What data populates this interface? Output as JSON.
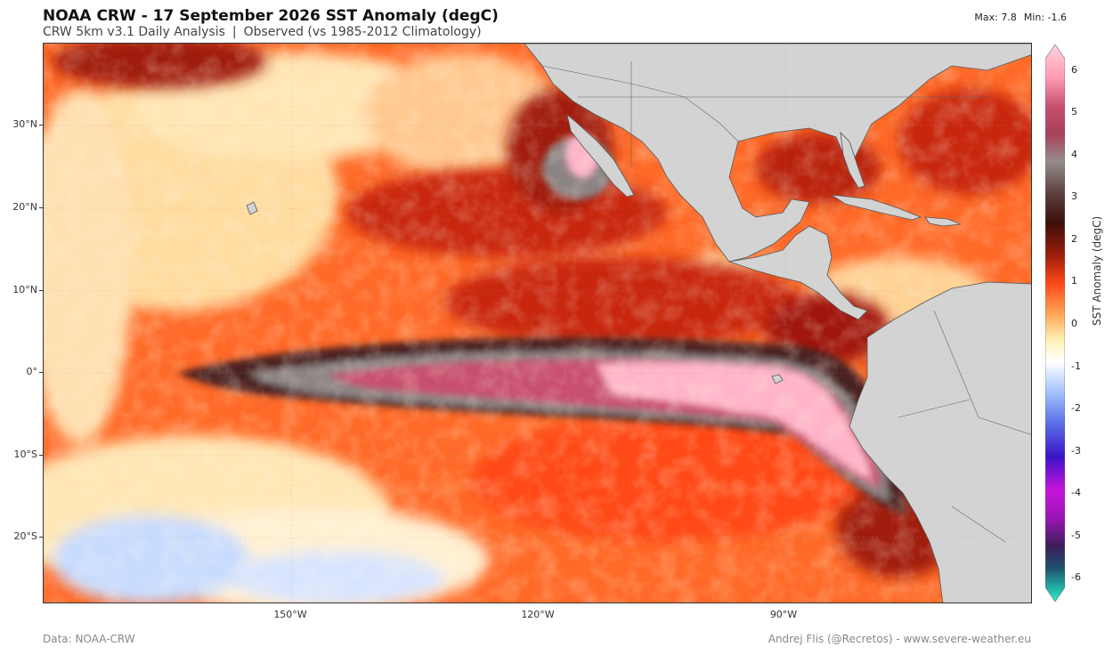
{
  "header": {
    "title": "NOAA CRW - 17 September 2026 SST Anomaly (degC)",
    "subtitle_left": "CRW 5km v3.1 Daily Analysis",
    "subtitle_sep": "|",
    "subtitle_right": "Observed (vs 1985-2012 Climatology)",
    "max_label": "Max: 7.8",
    "min_label": "Min: -1.6"
  },
  "map": {
    "lat_labels": [
      "30°N",
      "20°N",
      "10°N",
      "0°",
      "10°S",
      "20°S"
    ],
    "lon_labels": [
      "150°W",
      "120°W",
      "90°W"
    ],
    "colors": {
      "land": "#d3d3d3",
      "land_border": "#555555",
      "neutral": "#fffadc",
      "warm": "#ff5a1e",
      "hot": "#a5140a",
      "dark_core": "#4b2323",
      "gray_core": "#8c8484",
      "pink_core": "#c8506e",
      "light_pink": "#ffb4c8",
      "cool": "#aac8ff"
    }
  },
  "colorbar": {
    "label": "SST Anomaly (degC)",
    "ticks": [
      "6",
      "5",
      "4",
      "3",
      "2",
      "1",
      "0",
      "-1",
      "-2",
      "-3",
      "-4",
      "-5",
      "-6"
    ],
    "min": -6,
    "max": 6
  },
  "footer": {
    "data_credit": "Data: NOAA-CRW",
    "author_credit": "Andrej Flis (@Recretos) - www.severe-weather.eu"
  }
}
